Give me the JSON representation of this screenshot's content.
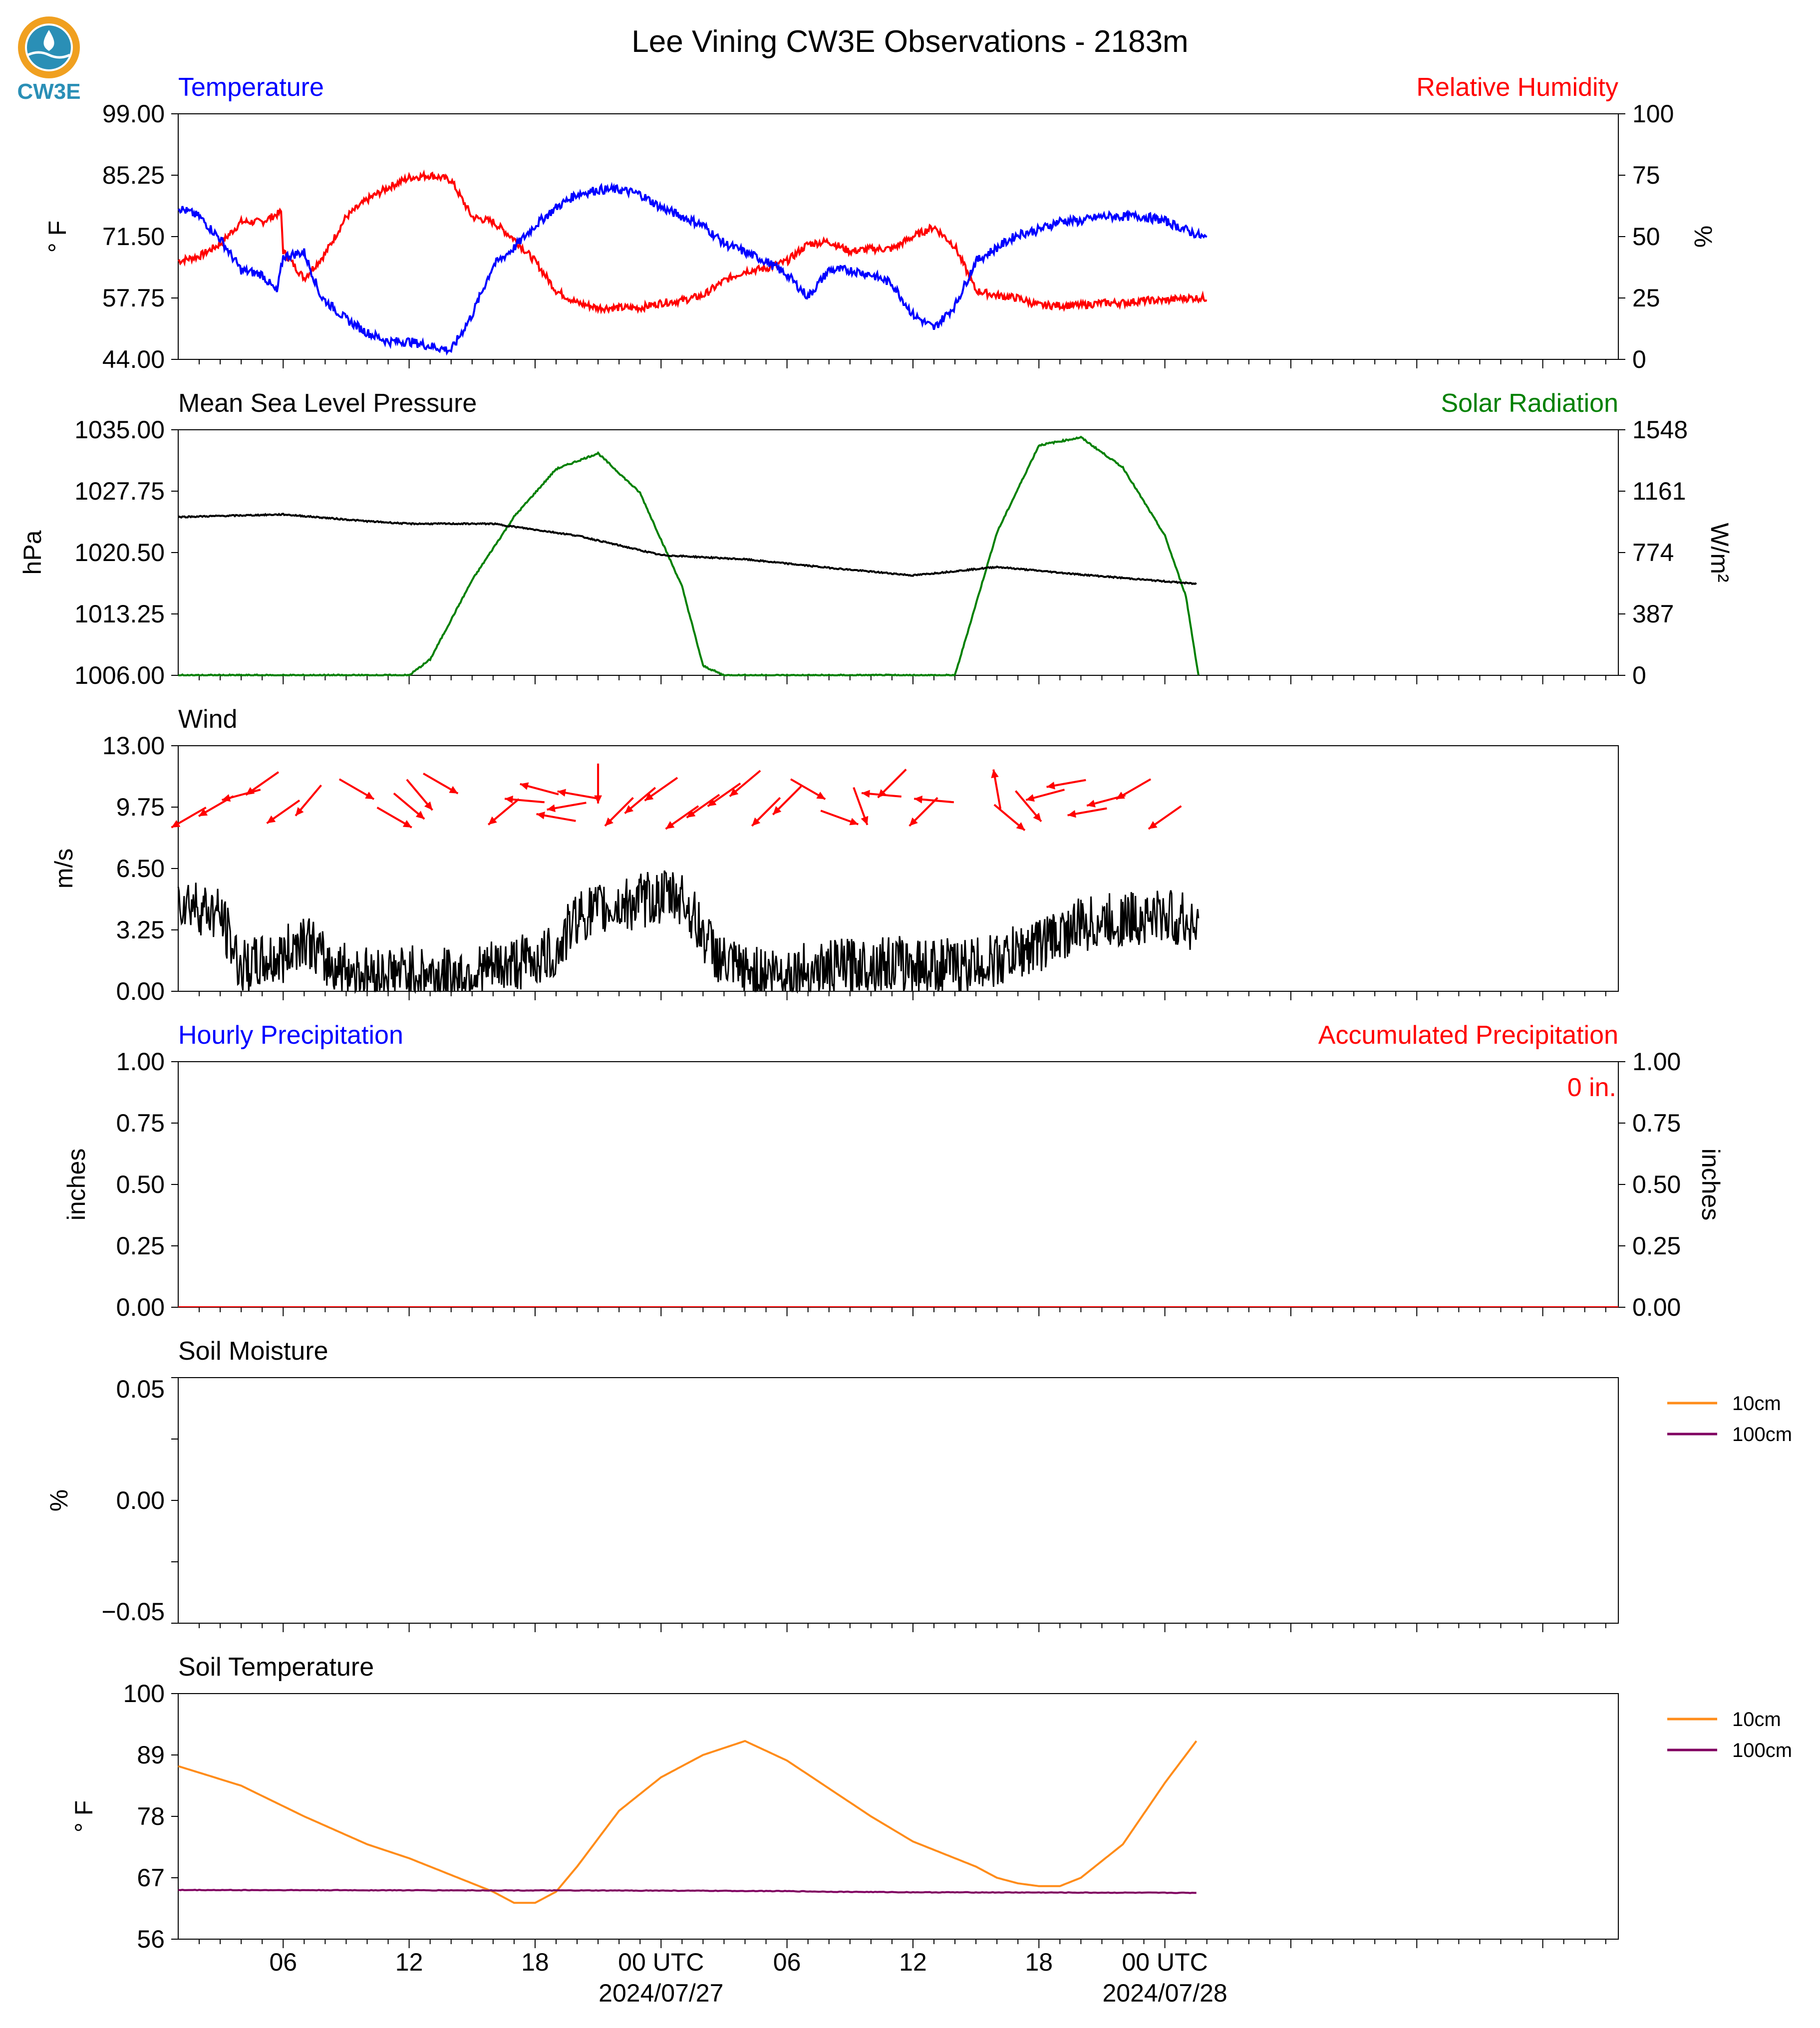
{
  "title": "Lee Vining CW3E Observations - 2183m",
  "logo": {
    "text": "CW3E",
    "colors": {
      "ring": "#f0a020",
      "drop": "#2a8fb6",
      "water": "#1f7aa8"
    }
  },
  "colors": {
    "temperature": "#0000ff",
    "humidity": "#ff0000",
    "pressure": "#000000",
    "solar": "#008000",
    "wind": "#000000",
    "wind_arrows": "#ff0000",
    "soil_10cm": "#ff8c1a",
    "soil_100cm": "#800060"
  },
  "x_axis": {
    "range_hours": [
      -23,
      45.6
    ],
    "ticks": [
      {
        "hour": -18,
        "label": "06"
      },
      {
        "hour": -12,
        "label": "12"
      },
      {
        "hour": -6,
        "label": "18"
      },
      {
        "hour": 0,
        "label": "00 UTC",
        "date": "2024/07/27"
      },
      {
        "hour": 6,
        "label": "06"
      },
      {
        "hour": 12,
        "label": "12"
      },
      {
        "hour": 18,
        "label": "18"
      },
      {
        "hour": 24,
        "label": "00 UTC",
        "date": "2024/07/28"
      }
    ]
  },
  "panels": {
    "temp_rh": {
      "left_title": "Temperature",
      "right_title": "Relative Humidity",
      "left_unit": "° F",
      "right_unit": "%",
      "left_ticks": [
        "99.00",
        "85.25",
        "71.50",
        "57.75",
        "44.00"
      ],
      "right_ticks": [
        "100",
        "75",
        "50",
        "25",
        "0"
      ]
    },
    "pressure_solar": {
      "left_title": "Mean Sea Level Pressure",
      "right_title": "Solar Radiation",
      "left_unit": "hPa",
      "right_unit": "W/m²",
      "left_ticks": [
        "1035.00",
        "1027.75",
        "1020.50",
        "1013.25",
        "1006.00"
      ],
      "right_ticks": [
        "1548",
        "1161",
        "774",
        "387",
        "0"
      ]
    },
    "wind": {
      "left_title": "Wind",
      "left_unit": "m/s",
      "left_ticks": [
        "13.00",
        "9.75",
        "6.50",
        "3.25",
        "0.00"
      ]
    },
    "precip": {
      "left_title": "Hourly Precipitation",
      "right_title": "Accumulated Precipitation",
      "left_unit": "inches",
      "right_unit": "inches",
      "annotation": "0 in.",
      "left_ticks": [
        "1.00",
        "0.75",
        "0.50",
        "0.25",
        "0.00"
      ],
      "right_ticks": [
        "1.00",
        "0.75",
        "0.50",
        "0.25",
        "0.00"
      ]
    },
    "soil_moisture": {
      "left_title": "Soil Moisture",
      "left_unit": "%",
      "left_ticks": [
        "0.05",
        "0.00",
        "−0.05"
      ],
      "legend": [
        "10cm",
        "100cm"
      ]
    },
    "soil_temp": {
      "left_title": "Soil Temperature",
      "left_unit": "° F",
      "left_ticks": [
        "100",
        "89",
        "78",
        "67",
        "56"
      ],
      "legend": [
        "10cm",
        "100cm"
      ]
    }
  },
  "chart_data": [
    {
      "type": "line",
      "title": "Temperature / Relative Humidity",
      "x_units": "hours from 2024/07/27 00 UTC",
      "series": [
        {
          "name": "Temperature",
          "axis": "left",
          "ylim": [
            44,
            99
          ],
          "x": [
            -23,
            -22,
            -21,
            -20,
            -19,
            -18.3,
            -18,
            -17,
            -16.2,
            -15,
            -14,
            -13,
            -12,
            -11,
            -10,
            -9,
            -8,
            -7,
            -6,
            -5,
            -4,
            -3,
            -2,
            -1,
            0,
            1,
            2,
            3,
            4,
            5,
            6,
            7,
            8,
            9,
            10,
            11,
            12,
            13,
            14,
            15,
            16,
            17,
            18,
            19,
            20,
            21,
            22,
            23,
            24,
            25,
            26
          ],
          "y": [
            78,
            76,
            71,
            64,
            63,
            59,
            67,
            68,
            58,
            53,
            50,
            48,
            48,
            47,
            46,
            54,
            65,
            69,
            74,
            78,
            81,
            82,
            82,
            81,
            78,
            76,
            74,
            70,
            68,
            66,
            63,
            58,
            64,
            64,
            63,
            61,
            54,
            51,
            56,
            66,
            69,
            72,
            73,
            75,
            75,
            76,
            76,
            76,
            75,
            73,
            71
          ]
        },
        {
          "name": "Relative Humidity",
          "axis": "right",
          "ylim": [
            0,
            100
          ],
          "x": [
            -23,
            -22,
            -21,
            -20,
            -19,
            -18.1,
            -18,
            -17,
            -16,
            -15,
            -14,
            -13,
            -12,
            -11,
            -10,
            -9,
            -8,
            -7,
            -6,
            -5,
            -4,
            -3,
            -2,
            -1,
            0,
            1,
            2,
            3,
            4,
            5,
            6,
            7,
            8,
            9,
            10,
            11,
            12,
            13,
            14,
            15,
            16,
            17,
            18,
            19,
            20,
            21,
            22,
            23,
            24,
            25,
            26
          ],
          "y": [
            40,
            42,
            47,
            56,
            56,
            60,
            44,
            33,
            43,
            58,
            65,
            70,
            74,
            75,
            73,
            58,
            56,
            49,
            40,
            28,
            23,
            21,
            21,
            21,
            23,
            24,
            26,
            32,
            36,
            37,
            40,
            47,
            48,
            44,
            45,
            45,
            50,
            54,
            46,
            28,
            26,
            25,
            22,
            22,
            22,
            23,
            23,
            24,
            24,
            25,
            25
          ]
        }
      ]
    },
    {
      "type": "line",
      "title": "Mean Sea Level Pressure / Solar Radiation",
      "x_units": "hours from 2024/07/27 00 UTC",
      "series": [
        {
          "name": "Mean Sea Level Pressure",
          "axis": "left",
          "ylim": [
            1006,
            1035
          ],
          "x": [
            -23,
            -18,
            -14,
            -12,
            -8,
            -4,
            0,
            4,
            8,
            12,
            16,
            20,
            25.5
          ],
          "y": [
            1024.7,
            1025.0,
            1024.2,
            1023.9,
            1023.9,
            1022.5,
            1020.2,
            1019.7,
            1018.7,
            1017.8,
            1018.8,
            1017.9,
            1016.8
          ]
        },
        {
          "name": "Solar Radiation",
          "axis": "right",
          "ylim": [
            0,
            1548
          ],
          "x": [
            -23,
            -22,
            -20,
            -14,
            -12,
            -11,
            -9,
            -7,
            -5,
            -3,
            -1,
            1,
            2,
            3,
            4,
            6,
            8,
            10,
            12,
            13,
            14,
            16,
            18,
            20,
            22,
            24,
            25,
            25.6
          ],
          "y": [
            0,
            0,
            0,
            0,
            0,
            100,
            600,
            1000,
            1300,
            1400,
            1150,
            560,
            60,
            0,
            0,
            0,
            0,
            0,
            0,
            0,
            0,
            900,
            1450,
            1500,
            1310,
            880,
            500,
            0
          ]
        }
      ]
    },
    {
      "type": "line",
      "title": "Wind",
      "x_units": "hours from 2024/07/27 00 UTC",
      "series": [
        {
          "name": "Wind speed",
          "ylim": [
            0,
            13
          ],
          "x": [
            -23,
            -21,
            -20,
            -18,
            -17,
            -16,
            -14,
            -12,
            -10,
            -8,
            -6,
            -5,
            -4,
            -2,
            0,
            1,
            2,
            3,
            4,
            6,
            8,
            10,
            12,
            14,
            16,
            18,
            20,
            22,
            24,
            25.6
          ],
          "y": [
            5,
            4,
            1.2,
            1.8,
            3,
            1.5,
            0.9,
            1,
            0.8,
            1.2,
            1.7,
            2,
            4,
            4.5,
            5,
            5,
            3,
            1.4,
            1,
            1,
            1.2,
            1.5,
            1.4,
            1.3,
            1.6,
            2.5,
            3.5,
            3.8,
            4,
            3.5
          ]
        },
        {
          "name": "Wind direction",
          "x": [
            -22.5,
            -21.2,
            -20,
            -19,
            -18,
            -16.8,
            -14.5,
            -12.7,
            -12,
            -11.5,
            -10.5,
            -7.5,
            -6.5,
            -5.8,
            -5,
            -4.5,
            -4,
            -3,
            -2,
            -1,
            0,
            1,
            2,
            3,
            4,
            5,
            6,
            7,
            8.5,
            9.5,
            10.5,
            11,
            12.5,
            13,
            16,
            16.6,
            17.5,
            18.3,
            19.3,
            20.3,
            21.2,
            22.5,
            24
          ],
          "dir_deg": [
            60,
            60,
            75,
            55,
            55,
            40,
            300,
            300,
            310,
            320,
            300,
            50,
            95,
            105,
            100,
            80,
            100,
            0,
            45,
            50,
            55,
            55,
            55,
            55,
            50,
            45,
            45,
            300,
            290,
            340,
            95,
            45,
            45,
            95,
            170,
            310,
            320,
            75,
            80,
            80,
            75,
            60,
            55
          ]
        }
      ]
    },
    {
      "type": "line",
      "title": "Hourly / Accumulated Precipitation",
      "x_units": "hours from 2024/07/27 00 UTC",
      "series": [
        {
          "name": "Hourly Precipitation",
          "x": [
            -23,
            26
          ],
          "y": [
            0,
            0
          ]
        },
        {
          "name": "Accumulated Precipitation",
          "x": [
            -23,
            26
          ],
          "y": [
            0,
            0
          ]
        }
      ]
    },
    {
      "type": "line",
      "title": "Soil Moisture",
      "series": [
        {
          "name": "10cm",
          "x": [],
          "y": []
        },
        {
          "name": "100cm",
          "x": [],
          "y": []
        }
      ]
    },
    {
      "type": "line",
      "title": "Soil Temperature",
      "x_units": "hours from 2024/07/27 00 UTC",
      "series": [
        {
          "name": "10cm",
          "ylim": [
            56,
            100
          ],
          "x": [
            -23,
            -20,
            -17,
            -14,
            -12,
            -10,
            -8,
            -7,
            -6,
            -5,
            -4,
            -2,
            0,
            2,
            4,
            6,
            8,
            10,
            12,
            14,
            15,
            16,
            17,
            18,
            19,
            20,
            22,
            24,
            25.5
          ],
          "y": [
            87,
            83.5,
            78,
            73,
            70.5,
            67.5,
            64.5,
            62.5,
            62.5,
            64.5,
            69,
            79,
            85,
            89,
            91.5,
            88,
            83,
            78,
            73.5,
            70.5,
            69,
            67,
            66,
            65.5,
            65.5,
            67,
            73,
            84,
            91.5
          ]
        },
        {
          "name": "100cm",
          "ylim": [
            56,
            100
          ],
          "x": [
            -23,
            0,
            6,
            8,
            12,
            25.5
          ],
          "y": [
            64.8,
            64.7,
            64.6,
            64.5,
            64.4,
            64.3
          ]
        }
      ]
    }
  ]
}
